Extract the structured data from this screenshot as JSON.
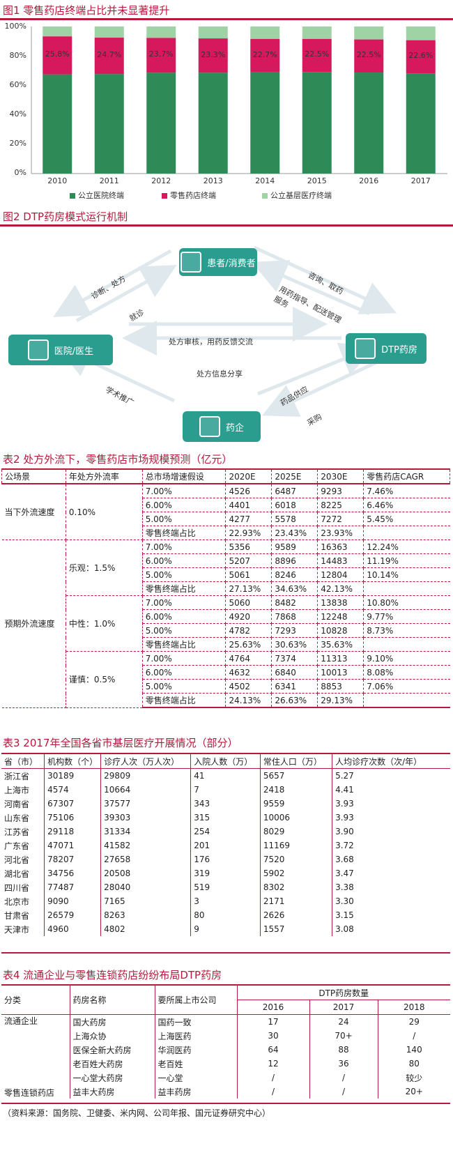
{
  "figure1": {
    "title": "图1  零售药店终端占比并未显著提升",
    "chart_data": {
      "type": "bar",
      "stacked": true,
      "categories": [
        "2010",
        "2011",
        "2012",
        "2013",
        "2014",
        "2015",
        "2016",
        "2017"
      ],
      "series": [
        {
          "name": "公立医院终端",
          "color": "#2e8b57",
          "values": [
            67.5,
            67.7,
            68.6,
            68.6,
            68.9,
            69.1,
            68.7,
            68.1
          ]
        },
        {
          "name": "零售药店终端",
          "color": "#d6195c",
          "values": [
            25.8,
            24.7,
            23.7,
            23.3,
            22.7,
            22.5,
            22.5,
            22.6
          ]
        },
        {
          "name": "公立基层医疗终端",
          "color": "#9fd3a6",
          "values": [
            6.7,
            7.6,
            7.7,
            8.1,
            8.4,
            8.4,
            8.8,
            9.3
          ]
        }
      ],
      "data_labels": [
        "25.8%",
        "24.7%",
        "23.7%",
        "23.3%",
        "22.7%",
        "22.5%",
        "22.5%",
        "22.6%"
      ],
      "yticks": [
        "100%",
        "80%",
        "60%",
        "40%",
        "20%",
        "0%"
      ],
      "ylim": [
        0,
        100
      ]
    }
  },
  "figure2": {
    "title": "图2  DTP药房模式运行机制",
    "nodes": {
      "patient": "患者/消费者",
      "hospital": "医院/医生",
      "dtp": "DTP药房",
      "pharma": "药企"
    },
    "labels": {
      "diagnose": "诊断、处方",
      "visit": "就诊",
      "consult": "咨询、取药",
      "guide": "用药指导、配送管理服务",
      "review": "处方审核，用药反馈交流",
      "share": "处方信息分享",
      "promote": "学术推广",
      "supply": "药品供应",
      "purchase": "采购"
    }
  },
  "table2": {
    "title": "表2  处方外流下，零售药店市场规模预测（亿元）",
    "headers": [
      "公场景",
      "年处方外流率",
      "总市场增速假设",
      "2020E",
      "2025E",
      "2030E",
      "零售药店CAGR"
    ],
    "scenario_current": "当下外流速度",
    "scenario_expected": "预期外流速度",
    "groups": [
      {
        "rate": "0.10%",
        "rows": [
          [
            "7.00%",
            "4526",
            "6487",
            "9293",
            "7.46%"
          ],
          [
            "6.00%",
            "4401",
            "6018",
            "8225",
            "6.46%"
          ],
          [
            "5.00%",
            "4277",
            "5578",
            "7272",
            "5.45%"
          ],
          [
            "零售终端占比",
            "22.93%",
            "23.43%",
            "23.93%",
            ""
          ]
        ]
      },
      {
        "rate": "乐观：1.5%",
        "rows": [
          [
            "7.00%",
            "5356",
            "9589",
            "16363",
            "12.24%"
          ],
          [
            "6.00%",
            "5207",
            "8896",
            "14483",
            "11.19%"
          ],
          [
            "5.00%",
            "5061",
            "8246",
            "12804",
            "10.14%"
          ],
          [
            "零售终端占比",
            "27.13%",
            "34.63%",
            "42.13%",
            ""
          ]
        ]
      },
      {
        "rate": "中性：1.0%",
        "rows": [
          [
            "7.00%",
            "5060",
            "8482",
            "13838",
            "10.80%"
          ],
          [
            "6.00%",
            "4920",
            "7868",
            "12248",
            "9.77%"
          ],
          [
            "5.00%",
            "4782",
            "7293",
            "10828",
            "8.73%"
          ],
          [
            "零售终端占比",
            "25.63%",
            "30.63%",
            "35.63%",
            ""
          ]
        ]
      },
      {
        "rate": "谨慎：0.5%",
        "rows": [
          [
            "7.00%",
            "4764",
            "7374",
            "11313",
            "9.10%"
          ],
          [
            "6.00%",
            "4632",
            "6840",
            "10013",
            "8.08%"
          ],
          [
            "5.00%",
            "4502",
            "6341",
            "8853",
            "7.06%"
          ],
          [
            "零售终端占比",
            "24.13%",
            "26.63%",
            "29.13%",
            ""
          ]
        ]
      }
    ]
  },
  "table3": {
    "title": "表3  2017年全国各省市基层医疗开展情况（部分）",
    "headers": [
      "省（市）",
      "机构数（个）",
      "诊疗人次（万人次）",
      "入院人数（万）",
      "常住人口（万）",
      "人均诊疗次数（次/年）"
    ],
    "rows": [
      [
        "浙江省",
        "30189",
        "29809",
        "41",
        "5657",
        "5.27"
      ],
      [
        "上海市",
        "4574",
        "10664",
        "7",
        "2418",
        "4.41"
      ],
      [
        "河南省",
        "67307",
        "37577",
        "343",
        "9559",
        "3.93"
      ],
      [
        "山东省",
        "75106",
        "39303",
        "315",
        "10006",
        "3.93"
      ],
      [
        "江苏省",
        "29118",
        "31334",
        "254",
        "8029",
        "3.90"
      ],
      [
        "广东省",
        "47071",
        "41582",
        "201",
        "11169",
        "3.72"
      ],
      [
        "河北省",
        "78207",
        "27658",
        "176",
        "7520",
        "3.68"
      ],
      [
        "湖北省",
        "34756",
        "20508",
        "319",
        "5902",
        "3.47"
      ],
      [
        "四川省",
        "77487",
        "28040",
        "519",
        "8302",
        "3.38"
      ],
      [
        "北京市",
        "9090",
        "7165",
        "3",
        "2171",
        "3.30"
      ],
      [
        "甘肃省",
        "26579",
        "8263",
        "80",
        "2626",
        "3.15"
      ],
      [
        "天津市",
        "4960",
        "4802",
        "9",
        "1557",
        "3.08"
      ]
    ]
  },
  "table4": {
    "title": "表4  流通企业与零售连锁药店纷纷布局DTP药房",
    "headers": [
      "分类",
      "药房名称",
      "要所属上市公司",
      "DTP药房数量",
      "2016",
      "2017",
      "2018"
    ],
    "cat_circulation": "流通企业",
    "cat_retail": "零售连锁药店",
    "rows": [
      [
        "国大药房",
        "国药一致",
        "17",
        "24",
        "29"
      ],
      [
        "上海众协",
        "上海医药",
        "30",
        "70+",
        "/"
      ],
      [
        "医保全新大药房",
        "华润医药",
        "64",
        "88",
        "140"
      ],
      [
        "老百姓大药房",
        "老百姓",
        "12",
        "36",
        "80"
      ],
      [
        "一心堂大药房",
        "一心堂",
        "/",
        "/",
        "较少"
      ],
      [
        "益丰大药房",
        "益丰药房",
        "/",
        "/",
        "20+"
      ]
    ]
  },
  "source": "（资料来源：国务院、卫健委、米内网、公司年报、国元证券研究中心）"
}
